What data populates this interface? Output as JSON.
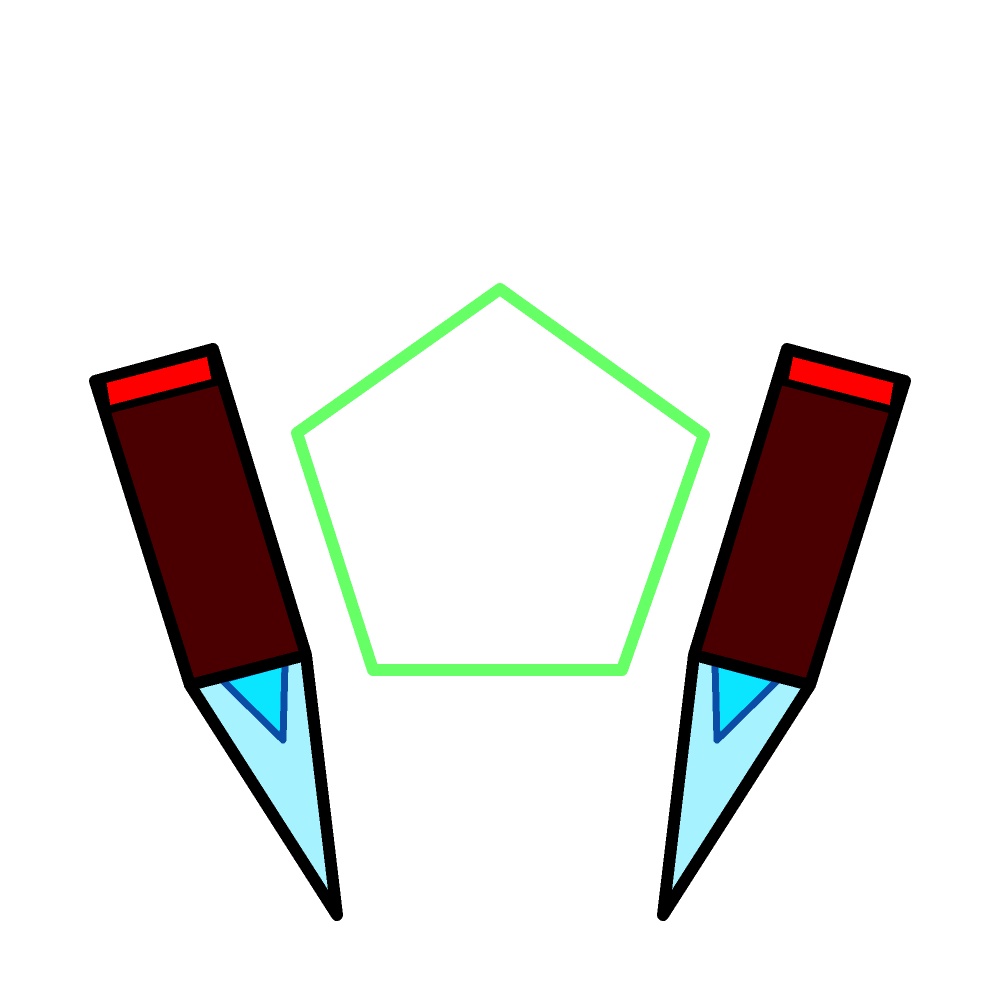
{
  "scene": {
    "background_color": "#ffffff",
    "outline_color": "#000000",
    "pentagon": {
      "icon": "pentagon-outline-icon",
      "stroke_color": "#66ff66",
      "filled": false
    },
    "blades": [
      {
        "side": "left",
        "icon": "crystal-blade-icon",
        "cap_color": "#ff0000",
        "handle_color": "#4a0000",
        "blade_color": "#a6f2ff",
        "inner_color": "#0ae6ff",
        "inner_stroke_color": "#0a4ca6"
      },
      {
        "side": "right",
        "icon": "crystal-blade-icon",
        "cap_color": "#ff0000",
        "handle_color": "#4a0000",
        "blade_color": "#a6f2ff",
        "inner_color": "#0ae6ff",
        "inner_stroke_color": "#0a4ca6"
      }
    ]
  }
}
